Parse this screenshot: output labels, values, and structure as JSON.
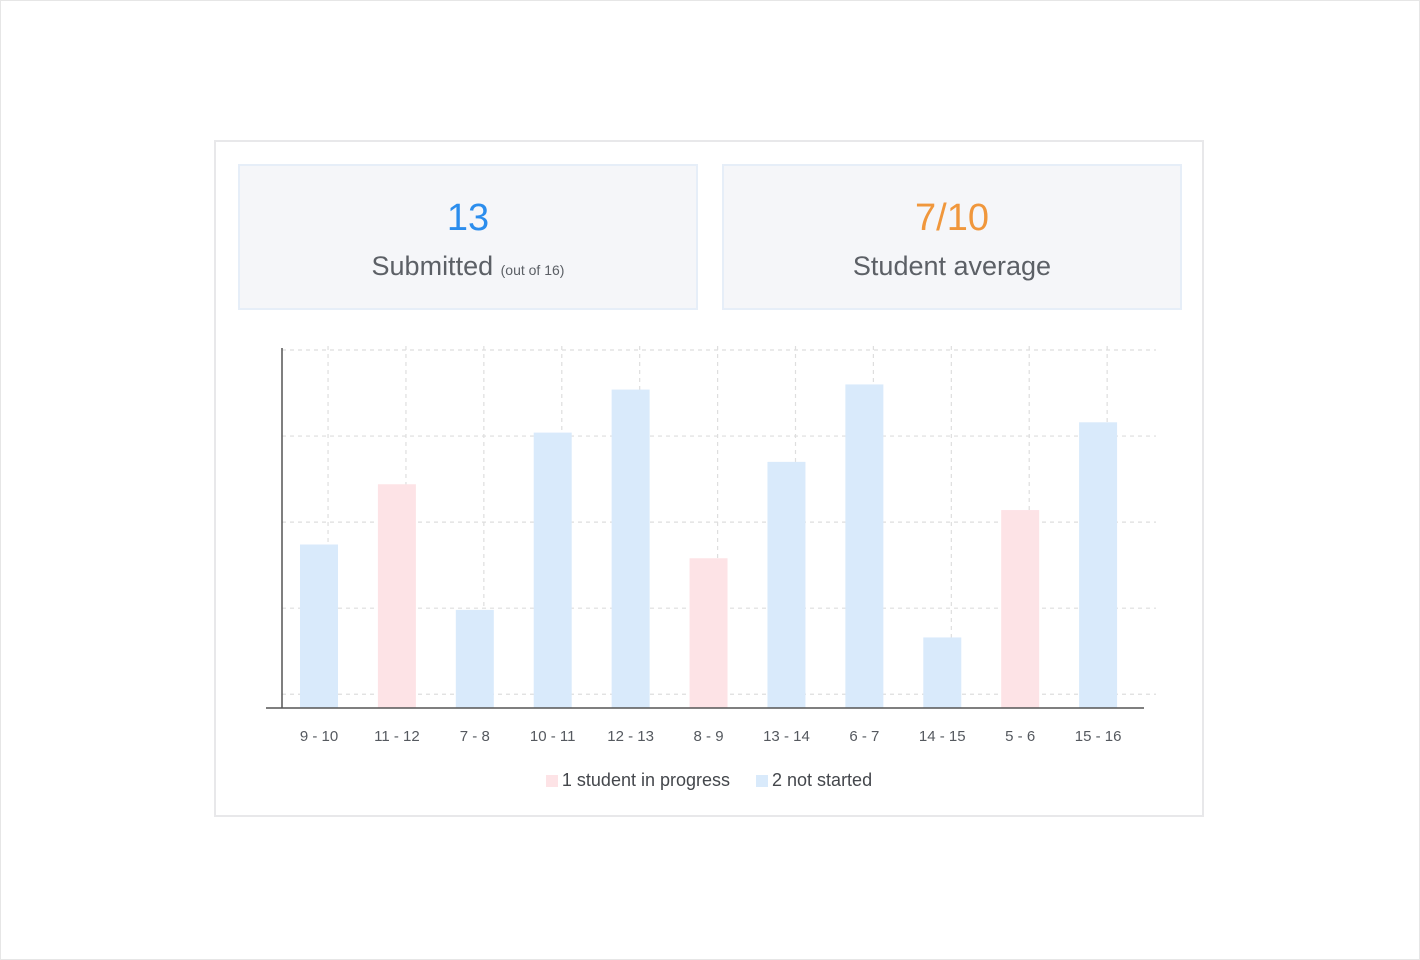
{
  "stats": {
    "submitted": {
      "value": "13",
      "label": "Submitted",
      "note": "(out of 16)",
      "color": "#2b8ded"
    },
    "average": {
      "value": "7/10",
      "label": "Student average",
      "color": "#f0973c"
    }
  },
  "colors": {
    "in_progress": "#fde3e6",
    "not_started": "#d9eafb",
    "axis": "#555555",
    "grid": "#dedede",
    "tick_label": "#55595f"
  },
  "chart_data": {
    "type": "bar",
    "categories": [
      "9 - 10",
      "11 - 12",
      "7 - 8",
      "10 - 11",
      "12 - 13",
      "8 - 9",
      "13 - 14",
      "6 - 7",
      "14 - 15",
      "5 - 6",
      "15 - 16"
    ],
    "values": [
      0.95,
      1.3,
      0.57,
      1.6,
      1.85,
      0.87,
      1.43,
      1.88,
      0.41,
      1.15,
      1.66
    ],
    "series_index": [
      1,
      0,
      1,
      1,
      1,
      0,
      1,
      1,
      1,
      0,
      1
    ],
    "ylim": [
      0,
      2.08
    ],
    "grid_lines": [
      0.08,
      0.58,
      1.08,
      1.58,
      2.08
    ],
    "grid": true,
    "legend_position": "bottom",
    "series": [
      {
        "name": "1 student in progress"
      },
      {
        "name": "2 not started"
      }
    ]
  }
}
